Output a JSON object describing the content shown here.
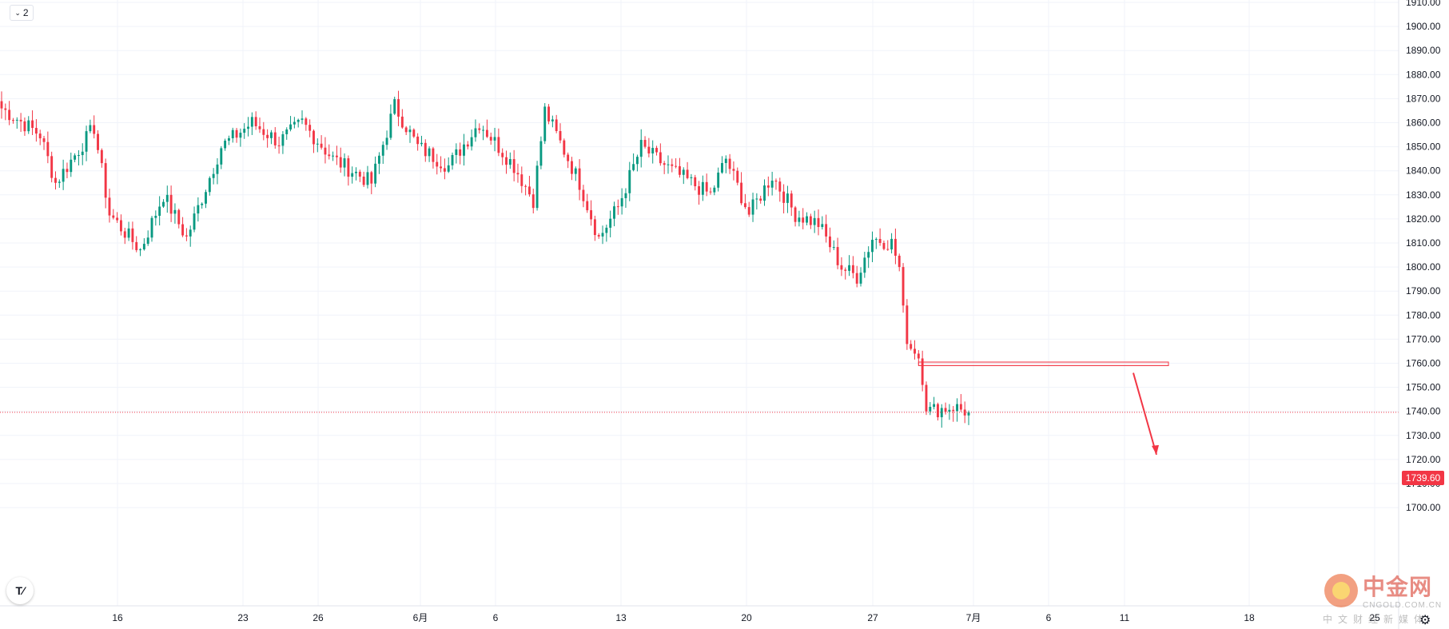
{
  "toolbar": {
    "collapse_count": "2"
  },
  "price_badge": "1739.60",
  "colors": {
    "up": "#089981",
    "down": "#f23645",
    "grid": "#f0f3fa",
    "current_price_line": "#f23645"
  },
  "icons": {
    "collapse": "chevron-down-icon",
    "tv": "tradingview-logo-icon",
    "settings": "gear-icon"
  },
  "watermark": {
    "cn": "中金网",
    "en": "CNGOLD.COM.CN",
    "sub": "中文财经新媒体"
  },
  "chart_data": {
    "type": "candlestick",
    "title": "",
    "y_axis": {
      "position": "right",
      "ticks": [
        1910,
        1900,
        1890,
        1880,
        1870,
        1860,
        1850,
        1840,
        1830,
        1820,
        1810,
        1800,
        1790,
        1780,
        1770,
        1760,
        1750,
        1740,
        1730,
        1720,
        1710,
        1700
      ],
      "tick_labels": [
        "1910.00",
        "1900.00",
        "1890.00",
        "1880.00",
        "1870.00",
        "1860.00",
        "1850.00",
        "1840.00",
        "1830.00",
        "1820.00",
        "1810.00",
        "1800.00",
        "1790.00",
        "1780.00",
        "1770.00",
        "1760.00",
        "1750.00",
        "1740.00",
        "1730.00",
        "1720.00",
        "1710.00",
        "1700.00"
      ],
      "ylim": [
        1700,
        1910
      ]
    },
    "x_axis": {
      "tick_labels": [
        "16",
        "23",
        "26",
        "6月",
        "6",
        "13",
        "20",
        "27",
        "7月",
        "6",
        "11",
        "18",
        "25"
      ]
    },
    "grid": true,
    "current_price": 1739.6,
    "anchors": [
      {
        "i": 0,
        "p": 1866
      },
      {
        "i": 10,
        "p": 1855
      },
      {
        "i": 14,
        "p": 1835
      },
      {
        "i": 24,
        "p": 1858
      },
      {
        "i": 28,
        "p": 1822
      },
      {
        "i": 36,
        "p": 1807
      },
      {
        "i": 42,
        "p": 1830
      },
      {
        "i": 48,
        "p": 1812
      },
      {
        "i": 57,
        "p": 1850
      },
      {
        "i": 65,
        "p": 1860
      },
      {
        "i": 72,
        "p": 1852
      },
      {
        "i": 78,
        "p": 1860
      },
      {
        "i": 86,
        "p": 1845
      },
      {
        "i": 96,
        "p": 1835
      },
      {
        "i": 102,
        "p": 1867
      },
      {
        "i": 108,
        "p": 1850
      },
      {
        "i": 116,
        "p": 1842
      },
      {
        "i": 124,
        "p": 1860
      },
      {
        "i": 133,
        "p": 1842
      },
      {
        "i": 138,
        "p": 1828
      },
      {
        "i": 141,
        "p": 1865
      },
      {
        "i": 150,
        "p": 1835
      },
      {
        "i": 155,
        "p": 1812
      },
      {
        "i": 160,
        "p": 1825
      },
      {
        "i": 166,
        "p": 1850
      },
      {
        "i": 174,
        "p": 1840
      },
      {
        "i": 184,
        "p": 1830
      },
      {
        "i": 188,
        "p": 1845
      },
      {
        "i": 194,
        "p": 1822
      },
      {
        "i": 200,
        "p": 1838
      },
      {
        "i": 206,
        "p": 1822
      },
      {
        "i": 212,
        "p": 1818
      },
      {
        "i": 218,
        "p": 1800
      },
      {
        "i": 222,
        "p": 1796
      },
      {
        "i": 226,
        "p": 1812
      },
      {
        "i": 231,
        "p": 1810
      },
      {
        "i": 233,
        "p": 1800
      },
      {
        "i": 235,
        "p": 1768
      },
      {
        "i": 238,
        "p": 1762
      },
      {
        "i": 240,
        "p": 1740
      },
      {
        "i": 247,
        "p": 1742
      },
      {
        "i": 251,
        "p": 1739.6
      }
    ],
    "candle_count": 252,
    "candle_x_range": [
      2,
      1212
    ],
    "zone": {
      "price_low": 1759,
      "price_high": 1760.5,
      "x_from_candle": 238,
      "x_to": "beyond last candle"
    },
    "forecast_arrow": {
      "from_price": 1756,
      "to_price": 1722,
      "direction": "down"
    }
  }
}
